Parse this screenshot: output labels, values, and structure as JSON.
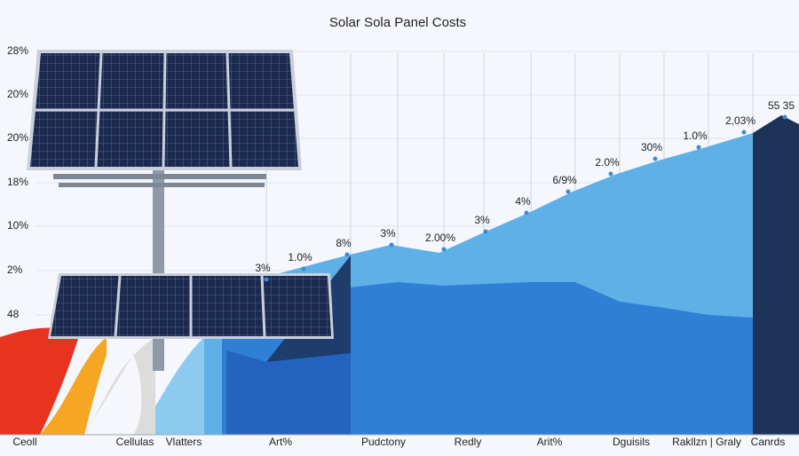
{
  "header": {
    "title": "Solar Sola Panel Costs"
  },
  "y_axis": {
    "labels": [
      "28%",
      "20%",
      "20%",
      "18%",
      "10%",
      "2%",
      "48"
    ]
  },
  "x_axis": {
    "labels": [
      "Ceoll",
      "Cellulas",
      "Vlatters",
      "Art%",
      "Pudctony",
      "Redly",
      "Arit%",
      "Dguisils",
      "Rakllzn | Graly",
      "Canrds"
    ]
  },
  "annotations": [
    "3%",
    "1.0%",
    "8%",
    "3%",
    "2.00%",
    "3%",
    "4%",
    "6/9%",
    "2.0%",
    "30%",
    "1.0%",
    "2,03%",
    "55 35"
  ]
}
